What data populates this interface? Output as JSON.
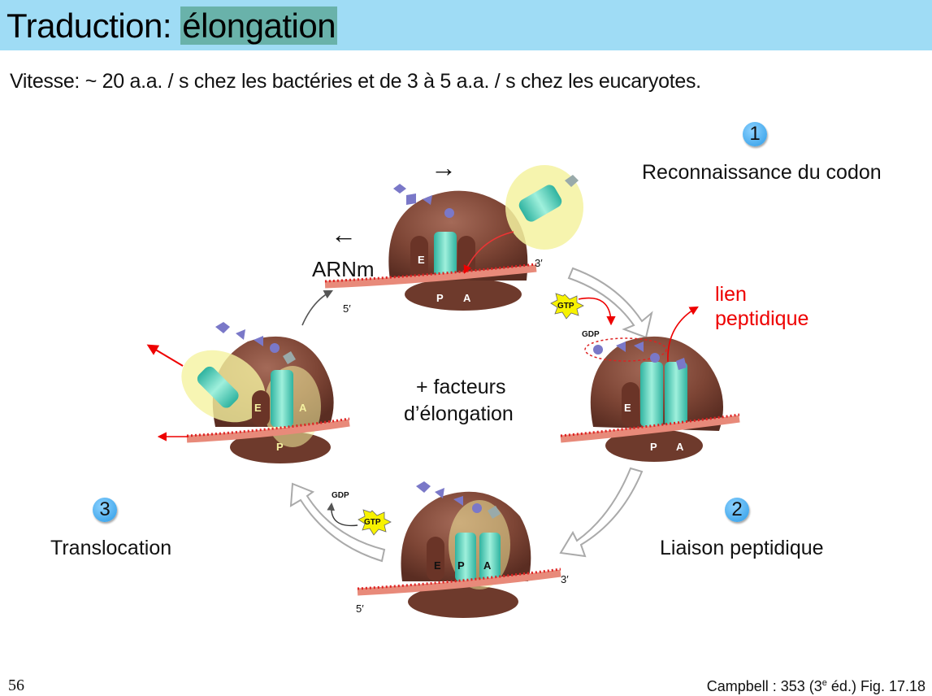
{
  "title": {
    "prefix": "Traduction: ",
    "highlight": "élongation"
  },
  "speed_note": "Vitesse: ~ 20 a.a. / s chez les bactéries et de 3 à 5 a.a. / s chez les eucaryotes.",
  "steps": [
    {
      "number": "1",
      "label": "Reconnaissance du codon"
    },
    {
      "number": "2",
      "label": "Liaison peptidique"
    },
    {
      "number": "3",
      "label": "Translocation"
    }
  ],
  "center_label": {
    "line1": "+ facteurs",
    "line2": "d’élongation"
  },
  "mrna_label": "ARNm",
  "direction_right": "→",
  "direction_left": "←",
  "peptide_bond": {
    "line1": "lien",
    "line2": "peptidique"
  },
  "site_labels": {
    "e": "E",
    "p": "P",
    "a": "A"
  },
  "end_labels": {
    "five": "5′",
    "three": "3′"
  },
  "nucleotides": {
    "gtp": "GTP",
    "gdp": "GDP"
  },
  "slide_number": "56",
  "credit": {
    "text": "Campbell : 353 (3",
    "sup": "e",
    "rest": " éd.) Fig. 17.18"
  }
}
